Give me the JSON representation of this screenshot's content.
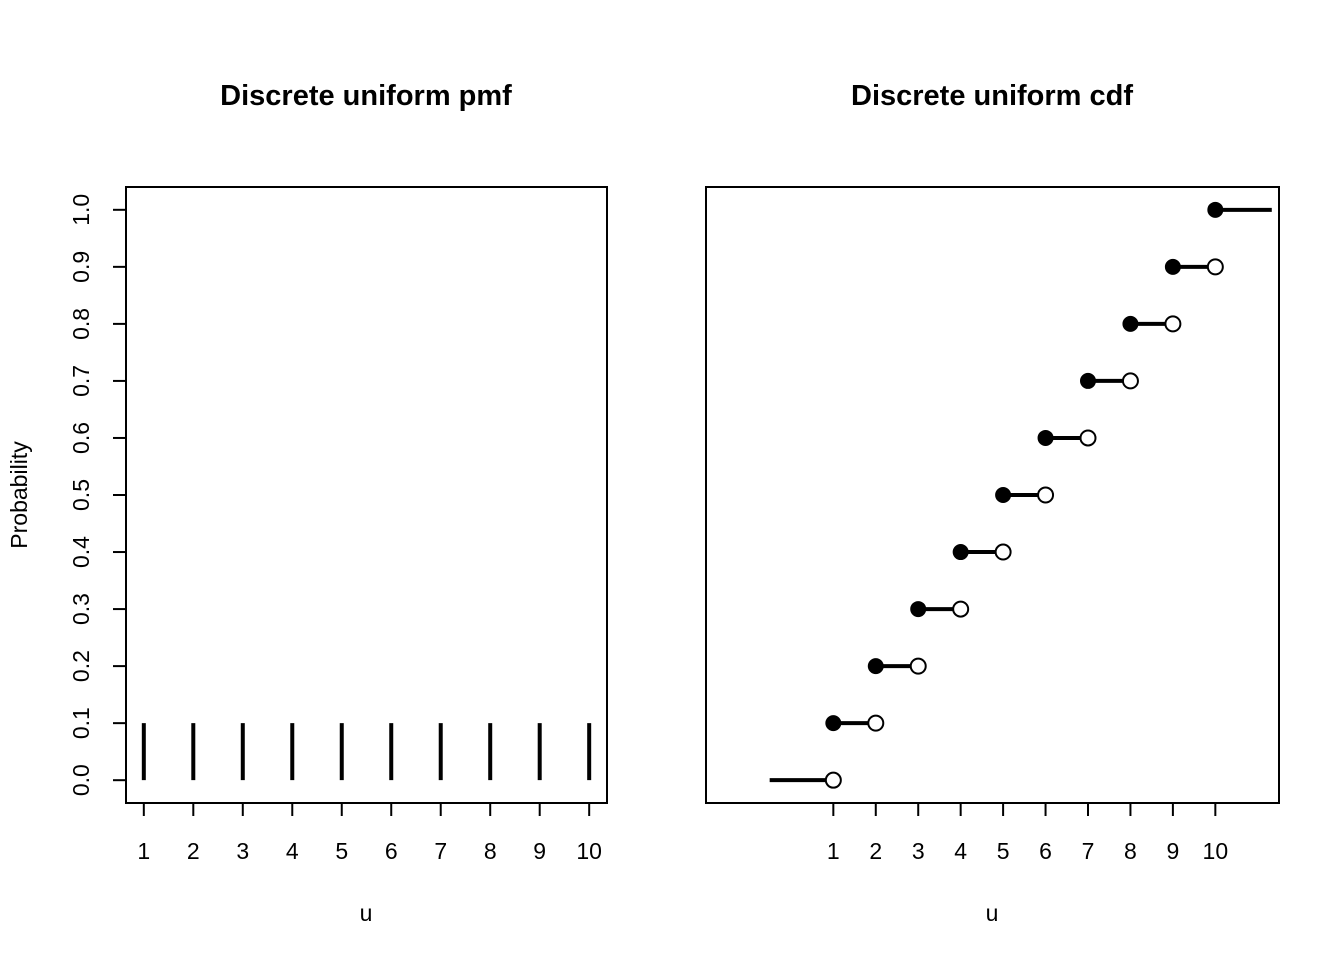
{
  "chart_data": [
    {
      "type": "bar",
      "title": "Discrete uniform pmf",
      "xlabel": "u",
      "ylabel": "Probability",
      "x": [
        1,
        2,
        3,
        4,
        5,
        6,
        7,
        8,
        9,
        10
      ],
      "values": [
        0.1,
        0.1,
        0.1,
        0.1,
        0.1,
        0.1,
        0.1,
        0.1,
        0.1,
        0.1
      ],
      "xlim": [
        0.64,
        10.36
      ],
      "ylim": [
        -0.04,
        1.04
      ],
      "x_ticks": [
        1,
        2,
        3,
        4,
        5,
        6,
        7,
        8,
        9,
        10
      ],
      "x_tick_labels": [
        "1",
        "2",
        "3",
        "4",
        "5",
        "6",
        "7",
        "8",
        "9",
        "10"
      ],
      "y_ticks": [
        0,
        0.1,
        0.2,
        0.3,
        0.4,
        0.5,
        0.6,
        0.7,
        0.8,
        0.9,
        1.0
      ],
      "y_tick_labels": [
        "0.0",
        "0.1",
        "0.2",
        "0.3",
        "0.4",
        "0.5",
        "0.6",
        "0.7",
        "0.8",
        "0.9",
        "1.0"
      ],
      "grid": false,
      "line_color": "#000000"
    },
    {
      "type": "line",
      "title": "Discrete uniform cdf",
      "xlabel": "u",
      "ylabel": "",
      "steps": [
        {
          "x0": -0.5,
          "x1": 1,
          "y": 0.0,
          "closed_start": false,
          "open_end": true
        },
        {
          "x0": 1,
          "x1": 2,
          "y": 0.1,
          "closed_start": true,
          "open_end": true
        },
        {
          "x0": 2,
          "x1": 3,
          "y": 0.2,
          "closed_start": true,
          "open_end": true
        },
        {
          "x0": 3,
          "x1": 4,
          "y": 0.3,
          "closed_start": true,
          "open_end": true
        },
        {
          "x0": 4,
          "x1": 5,
          "y": 0.4,
          "closed_start": true,
          "open_end": true
        },
        {
          "x0": 5,
          "x1": 6,
          "y": 0.5,
          "closed_start": true,
          "open_end": true
        },
        {
          "x0": 6,
          "x1": 7,
          "y": 0.6,
          "closed_start": true,
          "open_end": true
        },
        {
          "x0": 7,
          "x1": 8,
          "y": 0.7,
          "closed_start": true,
          "open_end": true
        },
        {
          "x0": 8,
          "x1": 9,
          "y": 0.8,
          "closed_start": true,
          "open_end": true
        },
        {
          "x0": 9,
          "x1": 10,
          "y": 0.9,
          "closed_start": true,
          "open_end": true
        },
        {
          "x0": 10,
          "x1": 11.33,
          "y": 1.0,
          "closed_start": true,
          "open_end": false
        }
      ],
      "xlim": [
        -2,
        11.5
      ],
      "ylim": [
        -0.04,
        1.04
      ],
      "x_ticks": [
        1,
        2,
        3,
        4,
        5,
        6,
        7,
        8,
        9,
        10
      ],
      "x_tick_labels": [
        "1",
        "2",
        "3",
        "4",
        "5",
        "6",
        "7",
        "8",
        "9",
        "10"
      ],
      "y_ticks": [],
      "grid": false,
      "line_color": "#000000"
    }
  ]
}
